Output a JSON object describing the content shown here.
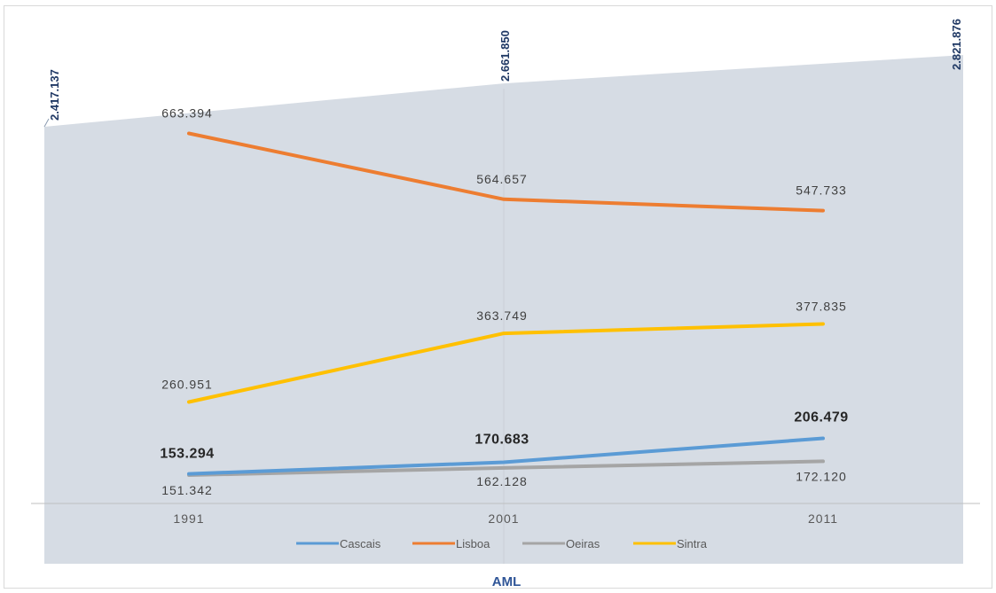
{
  "chart_data": {
    "type": "line",
    "categories": [
      "1991",
      "2001",
      "2011"
    ],
    "series": [
      {
        "name": "Cascais",
        "values": [
          153.294,
          170.683,
          206.479
        ],
        "labels": [
          "153.294",
          "170.683",
          "206.479"
        ],
        "color": "#5b9bd5",
        "bold_labels": true
      },
      {
        "name": "Lisboa",
        "values": [
          663.394,
          564.657,
          547.733
        ],
        "labels": [
          "663.394",
          "564.657",
          "547.733"
        ],
        "color": "#ed7d31",
        "bold_labels": false
      },
      {
        "name": "Oeiras",
        "values": [
          151.342,
          162.128,
          172.12
        ],
        "labels": [
          "151.342",
          "162.128",
          "172.120"
        ],
        "color": "#a5a5a5",
        "bold_labels": false
      },
      {
        "name": "Sintra",
        "values": [
          260.951,
          363.749,
          377.835
        ],
        "labels": [
          "260.951",
          "363.749",
          "377.835"
        ],
        "color": "#ffc000",
        "bold_labels": false
      }
    ],
    "area": {
      "name": "AML",
      "values": [
        2417137,
        2661850,
        2821876
      ],
      "labels": [
        "2.417.137",
        "2.661.850",
        "2.821.876"
      ],
      "color": "#d6dce4"
    },
    "xlabel": "AML",
    "legend_position": "bottom",
    "grid": false
  }
}
